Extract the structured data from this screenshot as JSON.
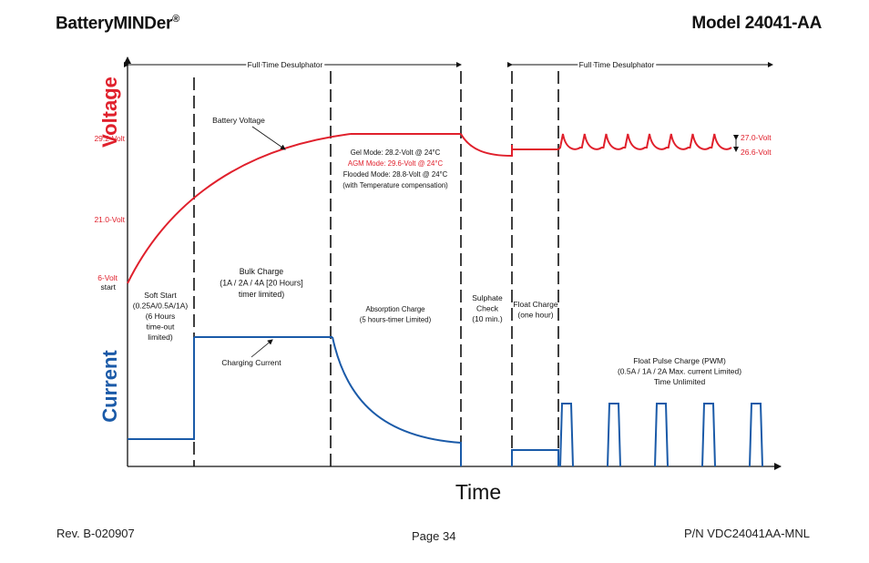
{
  "header": {
    "brand": "BatteryMINDer",
    "brand_mark": "®",
    "model": "Model 24041-AA"
  },
  "footer": {
    "revision": "Rev. B-020907",
    "page": "Page 34",
    "part_number": "P/N VDC24041AA-MNL"
  },
  "colors": {
    "voltage": "#e0202c",
    "current": "#1a5aa8",
    "axis": "#111111"
  },
  "chart_data": {
    "type": "line",
    "axis_titles": {
      "y_top": "Voltage",
      "y_bottom": "Current",
      "x": "Time"
    },
    "desulphator_labels": [
      "Full Time Desulphator",
      "Full Time Desulphator"
    ],
    "voltage_levels": [
      "29.2-Volt",
      "21.0-Volt",
      "6-Volt",
      "start"
    ],
    "float_levels": [
      "27.0-Volt",
      "26.6-Volt"
    ],
    "annotations": {
      "battery_voltage": "Battery Voltage",
      "charging_current": "Charging Current",
      "temperature_lines": [
        {
          "text": "Gel Mode: 28.2-Volt @ 24°C",
          "color": "#111111"
        },
        {
          "text": "AGM Mode: 29.6-Volt @ 24°C",
          "color": "#e0202c"
        },
        {
          "text": "Flooded Mode: 28.8-Volt @ 24°C",
          "color": "#111111"
        },
        {
          "text": "(with Temperature compensation)",
          "color": "#111111"
        }
      ]
    },
    "phases": [
      {
        "name": "soft-start",
        "lines": [
          "Soft Start",
          "(0.25A/0.5A/1A)",
          "(6 Hours",
          "time-out",
          "limited)"
        ]
      },
      {
        "name": "bulk-charge",
        "lines": [
          "Bulk Charge",
          "(1A / 2A / 4A [20 Hours]",
          "timer limited)"
        ]
      },
      {
        "name": "absorption-charge",
        "lines": [
          "Absorption Charge",
          "(5 hours-timer Limited)"
        ]
      },
      {
        "name": "sulphate-check",
        "lines": [
          "Sulphate",
          "Check",
          "(10 min.)"
        ]
      },
      {
        "name": "float-charge",
        "lines": [
          "Float Charge",
          "(one hour)"
        ]
      },
      {
        "name": "float-pulse-charge",
        "lines": [
          "Float Pulse Charge (PWM)",
          "(0.5A / 1A / 2A Max. current Limited)",
          "Time Unlimited"
        ]
      }
    ],
    "float_pulse_count": 8,
    "current_pulse_count": 5
  }
}
